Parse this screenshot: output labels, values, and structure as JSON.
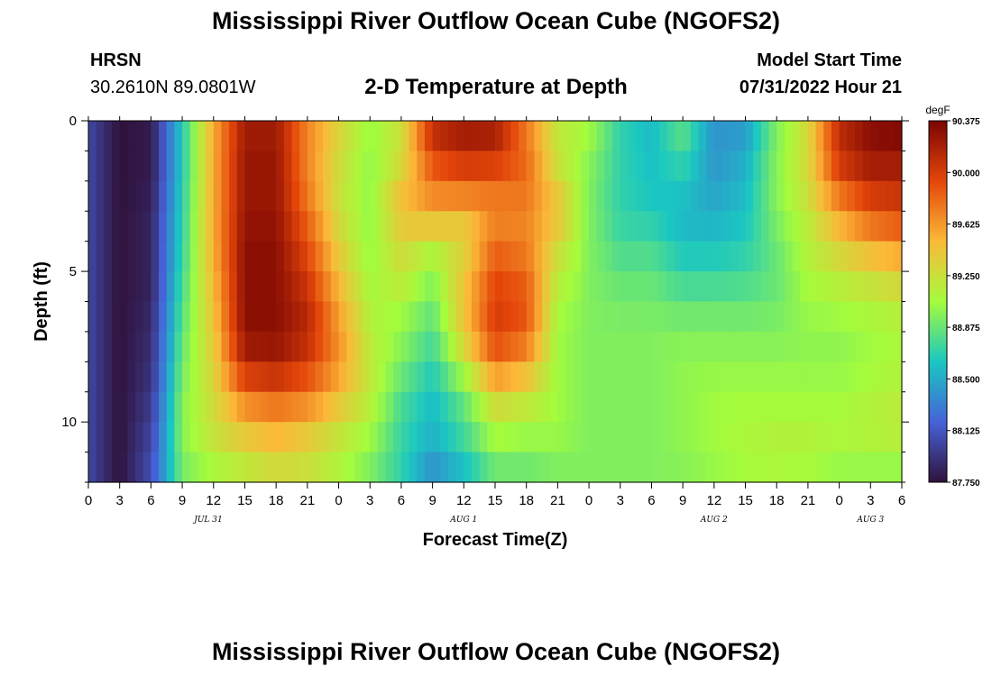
{
  "page": {
    "title": "Mississippi River Outflow Ocean Cube (NGOFS2)",
    "footer_title": "Mississippi River Outflow Ocean Cube (NGOFS2)",
    "station": {
      "name": "HRSN",
      "coords": "30.2610N  89.0801W"
    },
    "subtitle": "2-D Temperature at Depth",
    "model_start": {
      "label": "Model Start Time",
      "value": "07/31/2022 Hour 21"
    }
  },
  "chart_data": {
    "type": "heatmap",
    "title": "2-D Temperature at Depth",
    "xlabel": "Forecast Time(Z)",
    "ylabel": "Depth (ft)",
    "x_hours_since_jul31_00z": [
      0,
      3,
      6,
      9,
      12,
      15,
      18,
      21,
      24,
      27,
      30,
      33,
      36,
      39,
      42,
      45,
      48,
      51,
      54,
      57,
      60,
      63,
      66,
      69,
      72,
      75,
      78
    ],
    "xlim_hours": [
      0,
      78
    ],
    "x_tick_labels": [
      "0",
      "3",
      "6",
      "9",
      "12",
      "15",
      "18",
      "21",
      "0",
      "3",
      "6",
      "9",
      "12",
      "15",
      "18",
      "21",
      "0",
      "3",
      "6",
      "9",
      "12",
      "15",
      "18",
      "21",
      "0",
      "3",
      "6"
    ],
    "date_labels": [
      {
        "text": "JUL 31",
        "x_hour": 11.5
      },
      {
        "text": "AUG 1",
        "x_hour": 36
      },
      {
        "text": "AUG 2",
        "x_hour": 60
      },
      {
        "text": "AUG 3",
        "x_hour": 75
      }
    ],
    "depth_ft": [
      0,
      1,
      2,
      3,
      4,
      5,
      6,
      7,
      8,
      9,
      10,
      11,
      12
    ],
    "ylim_ft": [
      0,
      12
    ],
    "y_major_ticks": [
      0,
      5,
      10
    ],
    "y_tick_labels": [
      "0",
      "5",
      "10"
    ],
    "units": "degF",
    "colorbar": {
      "min": 87.75,
      "max": 90.375,
      "tick_values": [
        90.375,
        90.0,
        89.625,
        89.25,
        88.875,
        88.5,
        88.125,
        87.75
      ],
      "tick_labels": [
        "90.375",
        "90.000",
        "89.625",
        "89.250",
        "88.875",
        "88.500",
        "88.125",
        "87.750"
      ],
      "colormap": "turbo",
      "stops": [
        "#30123b",
        "#4662d8",
        "#1ac7c2",
        "#a4fc3c",
        "#fbb938",
        "#e4460a",
        "#7a0403"
      ]
    },
    "temperature_degF": {
      "note_dimensions": "rows=depth_ft, cols=x_hours",
      "rows": [
        [
          88.05,
          87.75,
          87.8,
          88.65,
          89.55,
          90.2,
          90.2,
          89.7,
          89.35,
          89.05,
          89.3,
          90.15,
          90.3,
          90.25,
          89.7,
          89.2,
          89.1,
          88.7,
          88.55,
          88.9,
          88.4,
          88.4,
          88.95,
          89.3,
          90.1,
          90.3,
          90.375
        ],
        [
          88.05,
          87.75,
          87.8,
          88.65,
          89.55,
          90.25,
          90.25,
          89.7,
          89.3,
          89.0,
          89.2,
          90.0,
          90.1,
          90.1,
          89.8,
          89.2,
          89.0,
          88.7,
          88.6,
          88.75,
          88.4,
          88.5,
          88.95,
          89.3,
          90.1,
          90.3,
          90.3
        ],
        [
          88.05,
          87.75,
          87.8,
          88.65,
          89.55,
          90.25,
          90.25,
          89.7,
          89.25,
          89.0,
          89.4,
          89.75,
          89.9,
          89.85,
          89.8,
          89.3,
          88.95,
          88.7,
          88.6,
          88.65,
          88.45,
          88.55,
          89.0,
          89.3,
          89.9,
          90.1,
          90.1
        ],
        [
          88.05,
          87.75,
          87.85,
          88.7,
          89.55,
          90.25,
          90.25,
          89.8,
          89.25,
          89.0,
          89.5,
          89.6,
          89.5,
          89.65,
          89.7,
          89.5,
          88.95,
          88.7,
          88.65,
          88.55,
          88.5,
          88.6,
          88.95,
          89.2,
          89.6,
          89.9,
          90.0
        ],
        [
          88.05,
          87.75,
          87.85,
          88.7,
          89.55,
          90.3,
          90.3,
          89.9,
          89.35,
          89.0,
          89.3,
          89.2,
          89.3,
          89.8,
          89.7,
          89.3,
          88.95,
          88.75,
          88.75,
          88.6,
          88.6,
          88.65,
          88.9,
          89.15,
          89.4,
          89.6,
          89.7
        ],
        [
          88.05,
          87.75,
          87.85,
          88.75,
          89.5,
          90.3,
          90.3,
          90.0,
          89.45,
          89.05,
          89.25,
          89.0,
          89.4,
          89.9,
          89.8,
          89.2,
          88.95,
          88.85,
          88.85,
          88.7,
          88.7,
          88.75,
          88.85,
          89.1,
          89.2,
          89.3,
          89.4
        ],
        [
          88.05,
          87.75,
          87.85,
          88.8,
          89.45,
          90.3,
          90.3,
          90.1,
          89.55,
          89.1,
          89.1,
          88.9,
          89.45,
          90.0,
          89.9,
          89.1,
          88.95,
          88.9,
          88.9,
          88.85,
          88.85,
          88.85,
          88.9,
          89.05,
          89.1,
          89.15,
          89.2
        ],
        [
          88.05,
          87.75,
          87.9,
          88.85,
          89.4,
          90.3,
          90.3,
          90.15,
          89.65,
          89.15,
          89.0,
          88.8,
          89.4,
          90.0,
          89.85,
          89.05,
          88.95,
          88.95,
          88.95,
          88.95,
          88.95,
          88.95,
          88.95,
          89.0,
          89.0,
          89.05,
          89.1
        ],
        [
          88.05,
          87.75,
          87.9,
          88.9,
          89.35,
          90.15,
          90.2,
          90.0,
          89.65,
          89.2,
          88.95,
          88.7,
          89.2,
          89.8,
          89.6,
          89.05,
          88.95,
          88.95,
          88.95,
          89.0,
          89.0,
          89.0,
          89.0,
          89.0,
          89.0,
          89.05,
          89.1
        ],
        [
          88.05,
          87.75,
          87.95,
          88.95,
          89.3,
          89.8,
          89.9,
          89.8,
          89.5,
          89.2,
          88.8,
          88.6,
          88.9,
          89.4,
          89.3,
          89.05,
          88.95,
          88.95,
          88.95,
          89.0,
          89.05,
          89.05,
          89.05,
          89.05,
          89.05,
          89.1,
          89.15
        ],
        [
          88.05,
          87.75,
          88.0,
          89.0,
          89.25,
          89.5,
          89.6,
          89.5,
          89.3,
          89.1,
          88.75,
          88.55,
          88.8,
          89.15,
          89.1,
          89.05,
          88.95,
          88.95,
          88.95,
          89.0,
          89.05,
          89.1,
          89.1,
          89.1,
          89.1,
          89.15,
          89.2
        ],
        [
          88.05,
          87.75,
          88.05,
          88.95,
          89.2,
          89.3,
          89.4,
          89.3,
          89.15,
          89.0,
          88.7,
          88.5,
          88.7,
          89.0,
          88.95,
          89.0,
          88.95,
          88.95,
          88.95,
          89.0,
          89.05,
          89.1,
          89.15,
          89.15,
          89.1,
          89.1,
          89.1
        ],
        [
          88.05,
          87.75,
          88.1,
          88.9,
          89.0,
          89.1,
          89.2,
          89.2,
          89.1,
          88.9,
          88.7,
          88.3,
          88.5,
          88.8,
          88.85,
          88.9,
          88.95,
          88.95,
          88.95,
          88.95,
          89.0,
          89.05,
          89.05,
          89.0,
          88.95,
          88.95,
          88.95
        ]
      ]
    },
    "grid": false
  }
}
